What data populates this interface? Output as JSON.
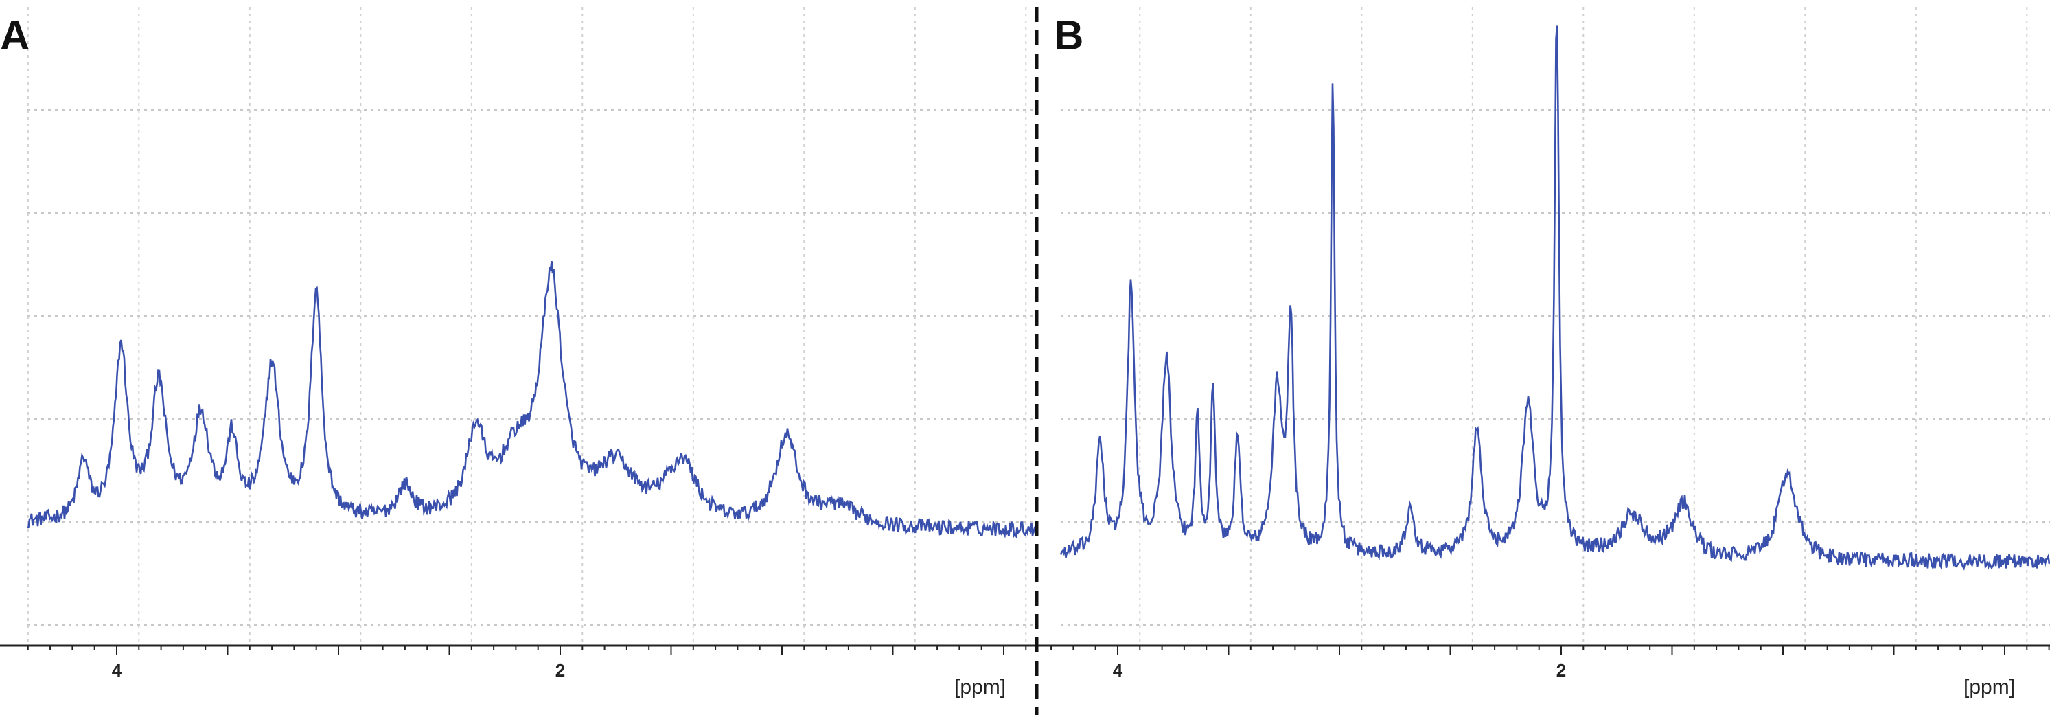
{
  "chart_data": [
    {
      "type": "line",
      "panel_label": "A",
      "xlabel": "[ppm]",
      "x_reversed": true,
      "xlim": [
        4.2,
        0
      ],
      "ylim": [
        0,
        1
      ],
      "grid": true,
      "x_ticks": [
        4,
        2
      ],
      "line_color": "#3a50ad",
      "baseline": 0.17,
      "noise": 0.012,
      "peaks": [
        {
          "x": 4.15,
          "h": 0.09,
          "w": 0.03
        },
        {
          "x": 3.98,
          "h": 0.27,
          "w": 0.035
        },
        {
          "x": 3.81,
          "h": 0.21,
          "w": 0.04
        },
        {
          "x": 3.62,
          "h": 0.16,
          "w": 0.045
        },
        {
          "x": 3.48,
          "h": 0.12,
          "w": 0.03
        },
        {
          "x": 3.3,
          "h": 0.24,
          "w": 0.04
        },
        {
          "x": 3.1,
          "h": 0.36,
          "w": 0.03
        },
        {
          "x": 2.7,
          "h": 0.05,
          "w": 0.04
        },
        {
          "x": 2.38,
          "h": 0.13,
          "w": 0.05
        },
        {
          "x": 2.2,
          "h": 0.09,
          "w": 0.09
        },
        {
          "x": 2.04,
          "h": 0.37,
          "w": 0.06
        },
        {
          "x": 1.75,
          "h": 0.08,
          "w": 0.1
        },
        {
          "x": 1.45,
          "h": 0.1,
          "w": 0.08
        },
        {
          "x": 0.98,
          "h": 0.14,
          "w": 0.06
        },
        {
          "x": 0.75,
          "h": 0.03,
          "w": 0.12
        }
      ]
    },
    {
      "type": "line",
      "panel_label": "B",
      "xlabel": "[ppm]",
      "x_reversed": true,
      "xlim": [
        4.2,
        0
      ],
      "ylim": [
        0,
        1
      ],
      "grid": true,
      "x_ticks": [
        4,
        2
      ],
      "line_color": "#3a50ad",
      "baseline": 0.12,
      "noise": 0.012,
      "peaks": [
        {
          "x": 4.08,
          "h": 0.18,
          "w": 0.02
        },
        {
          "x": 3.94,
          "h": 0.42,
          "w": 0.02
        },
        {
          "x": 3.78,
          "h": 0.31,
          "w": 0.025
        },
        {
          "x": 3.64,
          "h": 0.21,
          "w": 0.012
        },
        {
          "x": 3.57,
          "h": 0.26,
          "w": 0.012
        },
        {
          "x": 3.46,
          "h": 0.18,
          "w": 0.015
        },
        {
          "x": 3.28,
          "h": 0.26,
          "w": 0.025
        },
        {
          "x": 3.22,
          "h": 0.36,
          "w": 0.015
        },
        {
          "x": 3.03,
          "h": 0.76,
          "w": 0.01
        },
        {
          "x": 2.68,
          "h": 0.08,
          "w": 0.02
        },
        {
          "x": 2.38,
          "h": 0.2,
          "w": 0.025
        },
        {
          "x": 2.15,
          "h": 0.24,
          "w": 0.03
        },
        {
          "x": 2.02,
          "h": 0.85,
          "w": 0.012
        },
        {
          "x": 1.68,
          "h": 0.06,
          "w": 0.06
        },
        {
          "x": 1.45,
          "h": 0.09,
          "w": 0.05
        },
        {
          "x": 0.98,
          "h": 0.14,
          "w": 0.05
        }
      ]
    }
  ]
}
